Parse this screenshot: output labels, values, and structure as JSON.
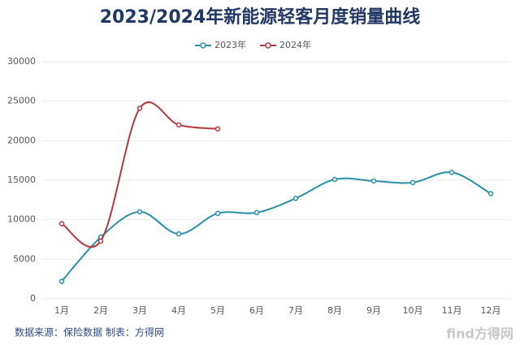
{
  "chart_data": {
    "type": "line",
    "title": "2023/2024年新能源轻客月度销量曲线",
    "categories": [
      "1月",
      "2月",
      "3月",
      "4月",
      "5月",
      "6月",
      "7月",
      "8月",
      "9月",
      "10月",
      "11月",
      "12月"
    ],
    "series": [
      {
        "name": "2023年",
        "color": "#2a8fa8",
        "values": [
          2200,
          7800,
          11000,
          8200,
          10800,
          10900,
          12700,
          15100,
          14900,
          14700,
          16000,
          13300
        ]
      },
      {
        "name": "2024年",
        "color": "#b5383f",
        "values": [
          9500,
          7300,
          24100,
          22000,
          21500,
          null,
          null,
          null,
          null,
          null,
          null,
          null
        ]
      }
    ],
    "ylim": [
      0,
      30000
    ],
    "yticks": [
      0,
      5000,
      10000,
      15000,
      20000,
      25000,
      30000
    ],
    "grid": true,
    "legend": "top",
    "source": "数据来源：保险数据  制表：方得网",
    "watermark": "find方得网"
  }
}
